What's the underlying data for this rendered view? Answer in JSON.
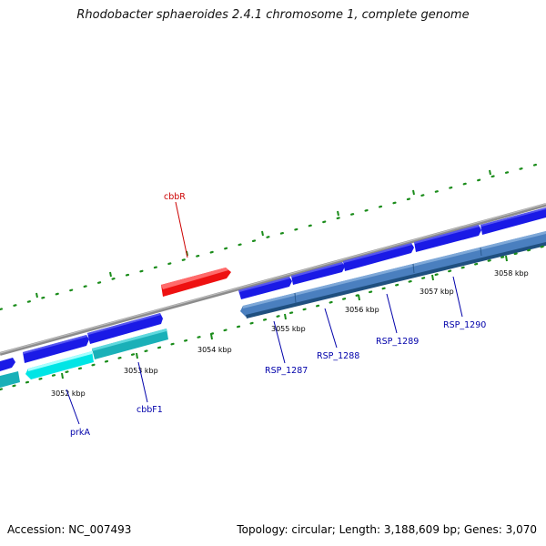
{
  "title": "Rhodobacter sphaeroides 2.4.1 chromosome 1, complete genome",
  "accession_text": "Accession: NC_007493",
  "summary_text": "Topology: circular; Length: 3,188,609 bp; Genes: 3,070",
  "ticks": [
    "3052 kbp",
    "3053 kbp",
    "3054 kbp",
    "3055 kbp",
    "3056 kbp",
    "3057 kbp",
    "3058 kbp"
  ],
  "gene_labels": [
    {
      "name": "cbbR",
      "color": "#cc0000"
    },
    {
      "name": "prkA",
      "color": "#0000aa"
    },
    {
      "name": "cbbF1",
      "color": "#0000aa"
    },
    {
      "name": "RSP_1287",
      "color": "#0000aa"
    },
    {
      "name": "RSP_1288",
      "color": "#0000aa"
    },
    {
      "name": "RSP_1289",
      "color": "#0000aa"
    },
    {
      "name": "RSP_1290",
      "color": "#0000aa"
    }
  ],
  "colors": {
    "forward_cds": "#1a1ae6",
    "reverse_cds": "#4a7fbf",
    "rna_highlight": "#00e5e5",
    "regulator": "#ee1111",
    "backbone": "#8c8c8c",
    "tick": "#1a8c1a"
  }
}
